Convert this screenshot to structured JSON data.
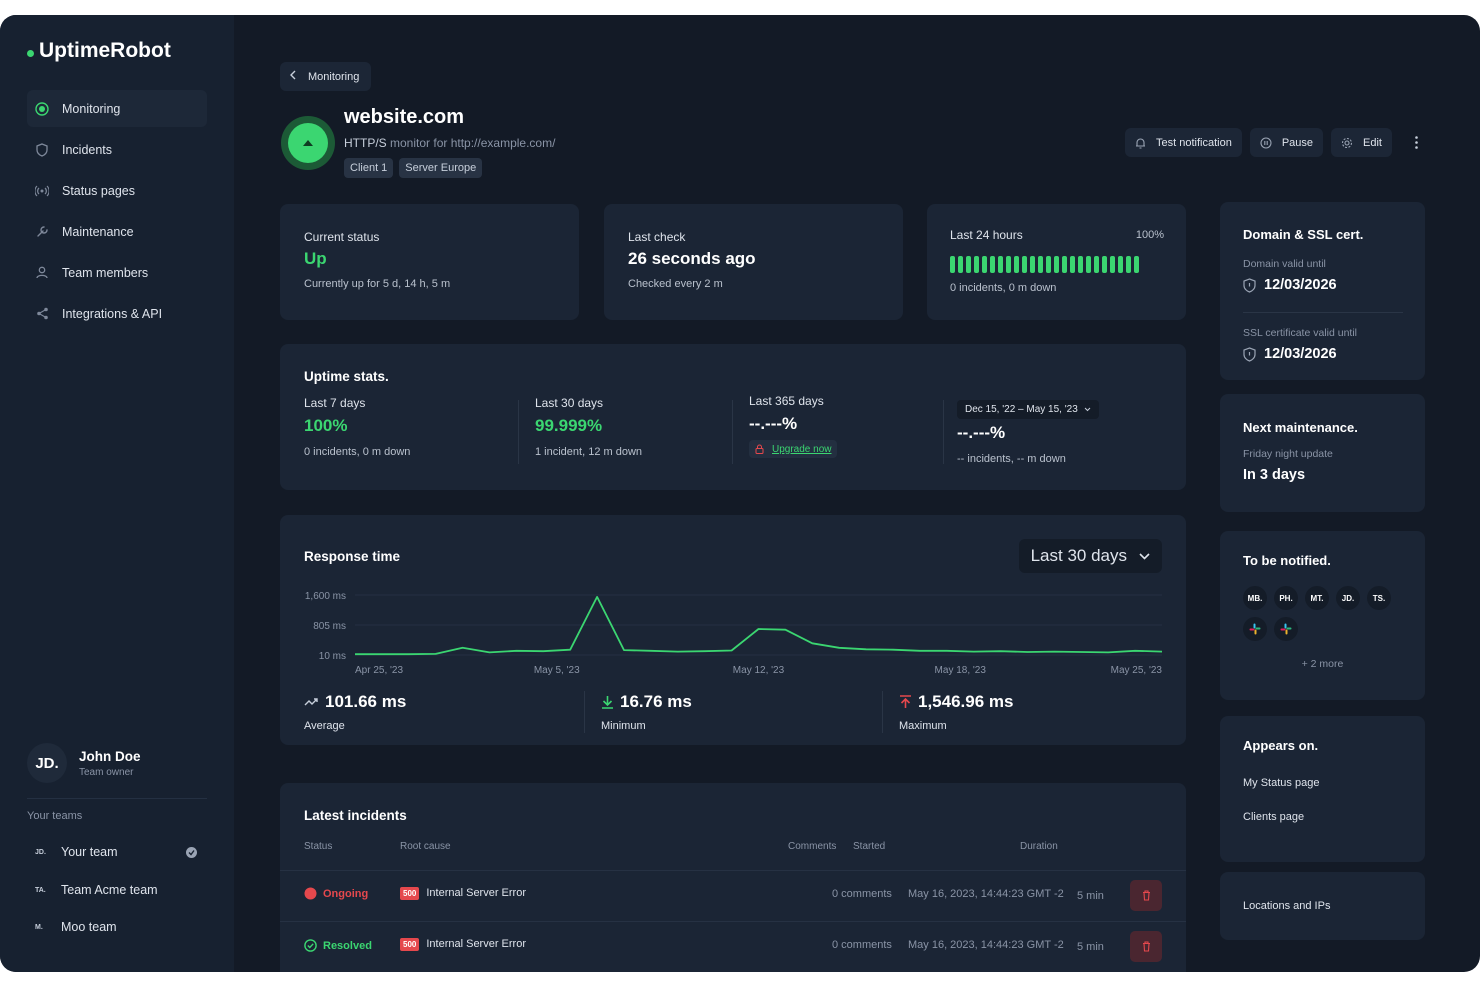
{
  "app": {
    "name": "UptimeRobot"
  },
  "nav": {
    "items": [
      {
        "label": "Monitoring",
        "icon": "monitoring-icon",
        "active": true
      },
      {
        "label": "Incidents",
        "icon": "shield-icon"
      },
      {
        "label": "Status pages",
        "icon": "broadcast-icon"
      },
      {
        "label": "Maintenance",
        "icon": "wrench-icon"
      },
      {
        "label": "Team members",
        "icon": "user-icon"
      },
      {
        "label": "Integrations & API",
        "icon": "share-icon"
      }
    ]
  },
  "user": {
    "initials": "JD.",
    "name": "John Doe",
    "role": "Team owner"
  },
  "teams": {
    "label": "Your teams",
    "items": [
      {
        "abbr": "JD.",
        "name": "Your team",
        "selected": true
      },
      {
        "abbr": "TA.",
        "name": "Team Acme team"
      },
      {
        "abbr": "M.",
        "name": "Moo team"
      }
    ]
  },
  "header": {
    "back_label": "Monitoring",
    "title": "website.com",
    "protocol": "HTTP/S",
    "subtitle_rest": "monitor for http://example.com/",
    "tags": [
      "Client 1",
      "Server Europe"
    ],
    "actions": {
      "test": "Test notification",
      "pause": "Pause",
      "edit": "Edit"
    }
  },
  "cards": {
    "status": {
      "label": "Current status",
      "value": "Up",
      "detail": "Currently up for 5 d, 14 h, 5 m"
    },
    "last_check": {
      "label": "Last check",
      "value": "26 seconds ago",
      "detail": "Checked every 2 m"
    },
    "last24": {
      "label": "Last 24 hours",
      "percent": "100%",
      "detail": "0 incidents, 0 m down",
      "bars": 24
    }
  },
  "uptime_stats": {
    "title": "Uptime stats.",
    "cols": [
      {
        "label": "Last 7 days",
        "value": "100%",
        "detail": "0 incidents, 0 m down"
      },
      {
        "label": "Last 30 days",
        "value": "99.999%",
        "detail": "1 incident, 12 m down"
      },
      {
        "label": "Last 365 days",
        "value": "--.---%",
        "upgrade": "Upgrade now"
      },
      {
        "range": "Dec 15, '22 – May 15, '23",
        "value": "--.---%",
        "detail": "-- incidents, -- m down"
      }
    ]
  },
  "response": {
    "title": "Response time",
    "range": "Last 30 days",
    "summary": [
      {
        "value": "101.66 ms",
        "label": "Average",
        "icon": "trend-icon"
      },
      {
        "value": "16.76 ms",
        "label": "Minimum",
        "icon": "arrow-down-icon"
      },
      {
        "value": "1,546.96 ms",
        "label": "Maximum",
        "icon": "arrow-up-icon"
      }
    ]
  },
  "chart_data": {
    "type": "line",
    "yticks": [
      "1,600 ms",
      "805 ms",
      "10 ms"
    ],
    "ylim": [
      10,
      1600
    ],
    "xticks": [
      "Apr 25, '23",
      "May 5, '23",
      "May 12, '23",
      "May 18, '23",
      "May 25, '23"
    ],
    "x": [
      "Apr 25",
      "Apr 26",
      "Apr 27",
      "Apr 28",
      "Apr 29",
      "Apr 30",
      "May 1",
      "May 2",
      "May 3",
      "May 4",
      "May 5",
      "May 6",
      "May 7",
      "May 8",
      "May 9",
      "May 10",
      "May 11",
      "May 12",
      "May 13",
      "May 14",
      "May 15",
      "May 16",
      "May 17",
      "May 18",
      "May 19",
      "May 20",
      "May 21",
      "May 22",
      "May 23",
      "May 24",
      "May 25"
    ],
    "values": [
      30,
      30,
      30,
      40,
      200,
      80,
      120,
      110,
      150,
      1550,
      140,
      120,
      100,
      110,
      130,
      700,
      680,
      320,
      200,
      160,
      150,
      120,
      120,
      100,
      110,
      90,
      100,
      90,
      80,
      120,
      100
    ],
    "color": "#3bd671"
  },
  "incidents": {
    "title": "Latest incidents",
    "headers": {
      "status": "Status",
      "root": "Root cause",
      "comments": "Comments",
      "started": "Started",
      "duration": "Duration"
    },
    "rows": [
      {
        "status": "Ongoing",
        "code": "500",
        "cause": "Internal Server Error",
        "comments": "0 comments",
        "started": "May 16, 2023, 14:44:23 GMT -2",
        "duration": "5 min"
      },
      {
        "status": "Resolved",
        "code": "500",
        "cause": "Internal Server Error",
        "comments": "0 comments",
        "started": "May 16, 2023, 14:44:23 GMT -2",
        "duration": "5 min"
      }
    ]
  },
  "side": {
    "domain": {
      "title": "Domain & SSL cert.",
      "domain_label": "Domain valid until",
      "domain_date": "12/03/2026",
      "ssl_label": "SSL certificate valid until",
      "ssl_date": "12/03/2026"
    },
    "maintenance": {
      "title": "Next maintenance.",
      "name": "Friday night update",
      "when": "In 3 days"
    },
    "notified": {
      "title": "To be notified.",
      "people": [
        "MB.",
        "PH.",
        "MT.",
        "JD.",
        "TS."
      ],
      "more": "+ 2 more"
    },
    "appears": {
      "title": "Appears on.",
      "items": [
        "My Status page",
        "Clients page"
      ]
    },
    "locations": {
      "label": "Locations and IPs"
    }
  },
  "colors": {
    "accent": "#3bd671",
    "danger": "#e5484d",
    "background": "#131a26",
    "card": "#1b2535"
  }
}
